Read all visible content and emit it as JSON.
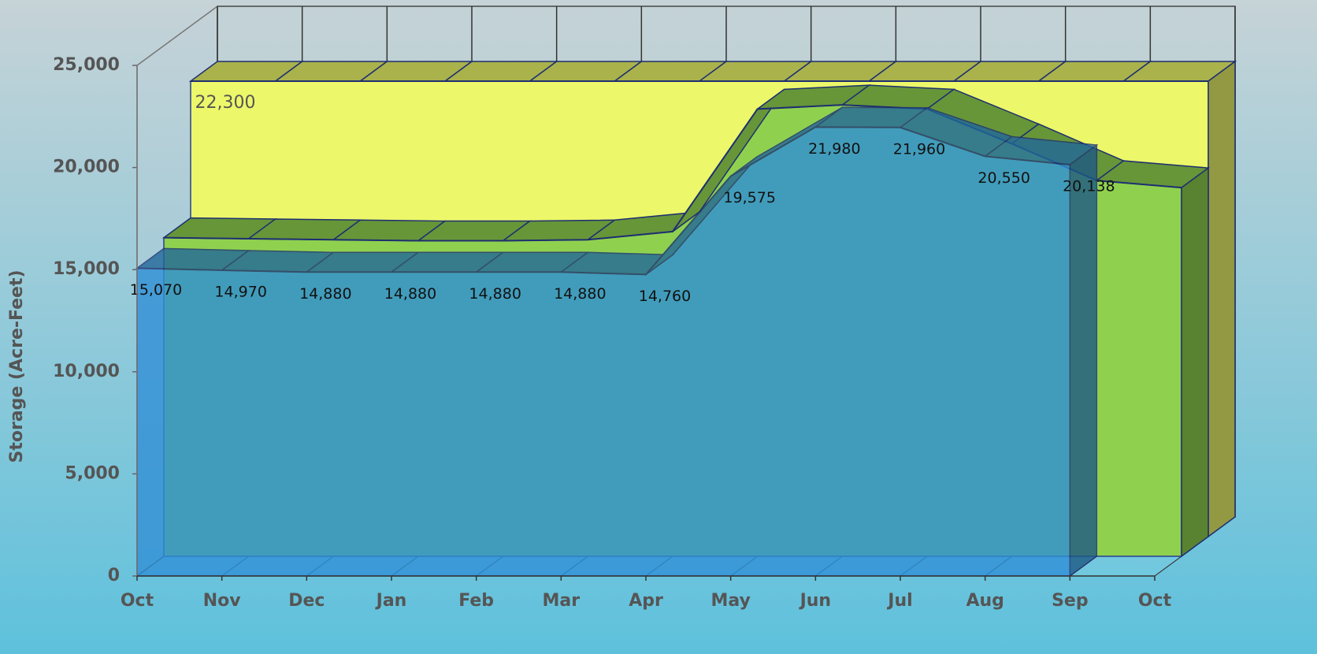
{
  "chart_data": {
    "type": "area3d",
    "y_axis_label": "Storage (Acre-Feet)",
    "categories": [
      "Oct",
      "Nov",
      "Dec",
      "Jan",
      "Feb",
      "Mar",
      "Apr",
      "May",
      "Jun",
      "Jul",
      "Aug",
      "Sep",
      "Oct"
    ],
    "ylim": [
      0,
      25000
    ],
    "yticks": [
      {
        "value": 0,
        "label": "0"
      },
      {
        "value": 5000,
        "label": "5,000"
      },
      {
        "value": 10000,
        "label": "10,000"
      },
      {
        "value": 15000,
        "label": "15,000"
      },
      {
        "value": 20000,
        "label": "20,000"
      },
      {
        "value": 25000,
        "label": "25,000"
      }
    ],
    "series": [
      {
        "color": "#ecf76a",
        "values": [
          22300,
          22300,
          22300,
          22300,
          22300,
          22300,
          22300,
          22300,
          22300,
          22300,
          22300,
          22300,
          22300
        ],
        "value_labels": [
          "22,300",
          null,
          null,
          null,
          null,
          null,
          null,
          null,
          null,
          null,
          null,
          null,
          null
        ]
      },
      {
        "color": "#8fd14f",
        "values": [
          15600,
          15550,
          15500,
          15450,
          15450,
          15500,
          15900,
          21900,
          22100,
          21900,
          20200,
          18400,
          18050
        ]
      },
      {
        "color": "#2e8fd6",
        "values": [
          15070,
          14970,
          14880,
          14880,
          14880,
          14880,
          14760,
          19575,
          21980,
          21960,
          20550,
          20138,
          null
        ],
        "value_labels": [
          "15,070",
          "14,970",
          "14,880",
          "14,880",
          "14,880",
          "14,880",
          "14,760",
          "19,575",
          "21,980",
          "21,960",
          "20,550",
          "20,138",
          null
        ]
      }
    ]
  }
}
